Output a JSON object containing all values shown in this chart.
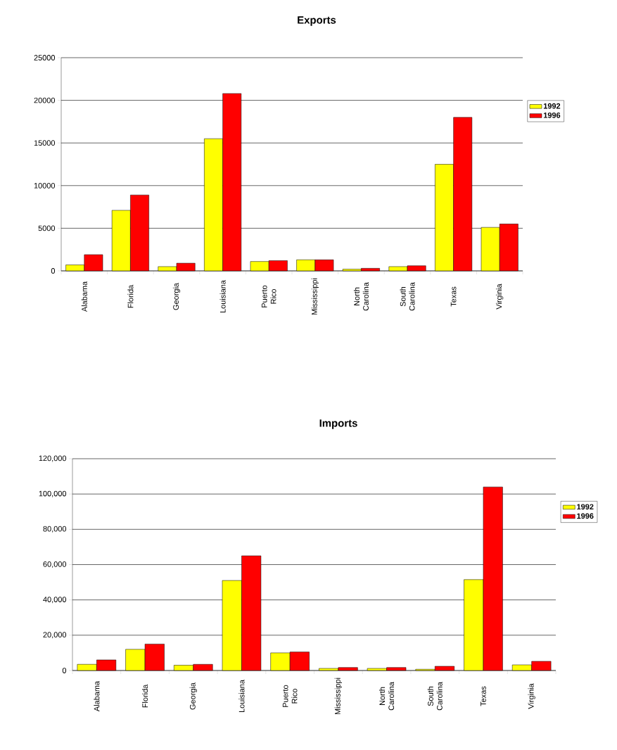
{
  "chart_data": [
    {
      "type": "bar",
      "title": "Exports",
      "categories": [
        "Alabama",
        "Florida",
        "Georgia",
        "Louisiana",
        "Puerto Rico",
        "Mississippi",
        "North Carolina",
        "South Carolina",
        "Texas",
        "Virginia"
      ],
      "series": [
        {
          "name": "1992",
          "color": "#ffff00",
          "values": [
            700,
            7100,
            500,
            15500,
            1100,
            1300,
            200,
            500,
            12500,
            5100
          ]
        },
        {
          "name": "1996",
          "color": "#ff0000",
          "values": [
            1900,
            8900,
            900,
            20800,
            1200,
            1300,
            300,
            600,
            18000,
            5500
          ]
        }
      ],
      "ylim": [
        0,
        25000
      ],
      "yticks": [
        0,
        5000,
        10000,
        15000,
        20000,
        25000
      ],
      "grid": "y",
      "legend": "right"
    },
    {
      "type": "bar",
      "title": "Imports",
      "categories": [
        "Alabama",
        "Florida",
        "Georgia",
        "Louisiana",
        "Puerto Rico",
        "Mississippi",
        "North Carolina",
        "South Carolina",
        "Texas",
        "Virginia"
      ],
      "series": [
        {
          "name": "1992",
          "color": "#ffff00",
          "values": [
            3500,
            12000,
            3000,
            51000,
            10000,
            1200,
            1200,
            700,
            51500,
            3200
          ]
        },
        {
          "name": "1996",
          "color": "#ff0000",
          "values": [
            6000,
            15000,
            3500,
            65000,
            10500,
            1700,
            1700,
            2400,
            104000,
            5200
          ]
        }
      ],
      "ylim": [
        0,
        120000
      ],
      "yticks": [
        0,
        {
          "value": 20000,
          "label": "20,000"
        },
        {
          "value": 40000,
          "label": "40,000"
        },
        {
          "value": 60000,
          "label": "60,000"
        },
        {
          "value": 80000,
          "label": "80,000"
        },
        {
          "value": 100000,
          "label": "100,000"
        },
        {
          "value": 120000,
          "label": "120,000"
        }
      ],
      "grid": "y",
      "legend": "right"
    }
  ]
}
